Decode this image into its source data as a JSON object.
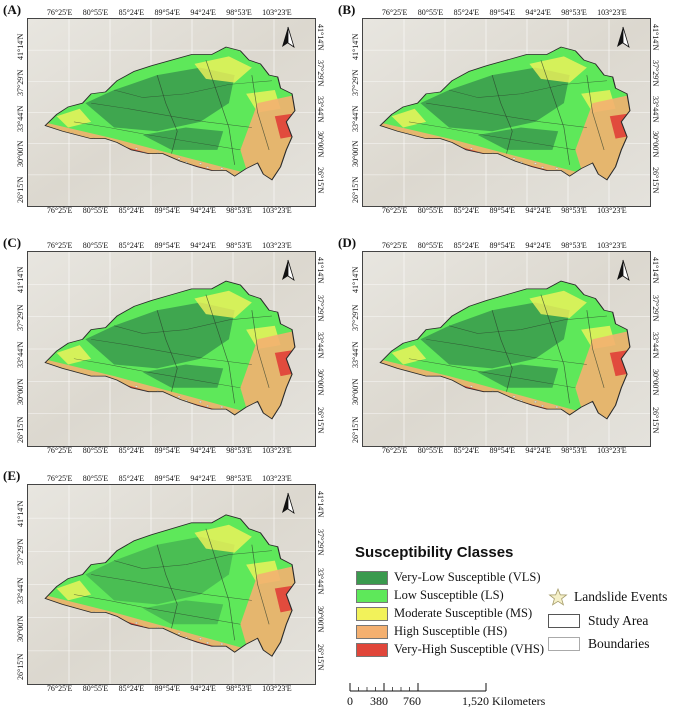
{
  "panels": [
    {
      "letter": "(A)"
    },
    {
      "letter": "(B)"
    },
    {
      "letter": "(C)"
    },
    {
      "letter": "(D)"
    },
    {
      "letter": "(E)"
    }
  ],
  "longitude_ticks": [
    "76°25'E",
    "80°55'E",
    "85°24'E",
    "89°54'E",
    "94°24'E",
    "98°53'E",
    "103°23'E"
  ],
  "latitude_ticks": [
    "41°14'N",
    "37°29'N",
    "33°44'N",
    "30°00'N",
    "26°15'N"
  ],
  "legend": {
    "title": "Susceptibility Classes",
    "classes": [
      {
        "label": "Very-Low Susceptible (VLS)",
        "color": "#3a9a4e"
      },
      {
        "label": "Low Susceptible (LS)",
        "color": "#5ee85a"
      },
      {
        "label": "Moderate Susceptible (MS)",
        "color": "#f2f25a"
      },
      {
        "label": "High Susceptible (HS)",
        "color": "#f4b070"
      },
      {
        "label": "Very-High Susceptible (VHS)",
        "color": "#e0463a"
      }
    ]
  },
  "layers": [
    {
      "label": "Landslide Events",
      "icon": "star-icon"
    },
    {
      "label": "Study Area",
      "icon": "rectangle-icon"
    },
    {
      "label": "Boundaries",
      "icon": "rectangle-icon"
    }
  ],
  "scale": {
    "ticks": [
      "0",
      "380",
      "760",
      "1,520 Kilometers"
    ]
  }
}
